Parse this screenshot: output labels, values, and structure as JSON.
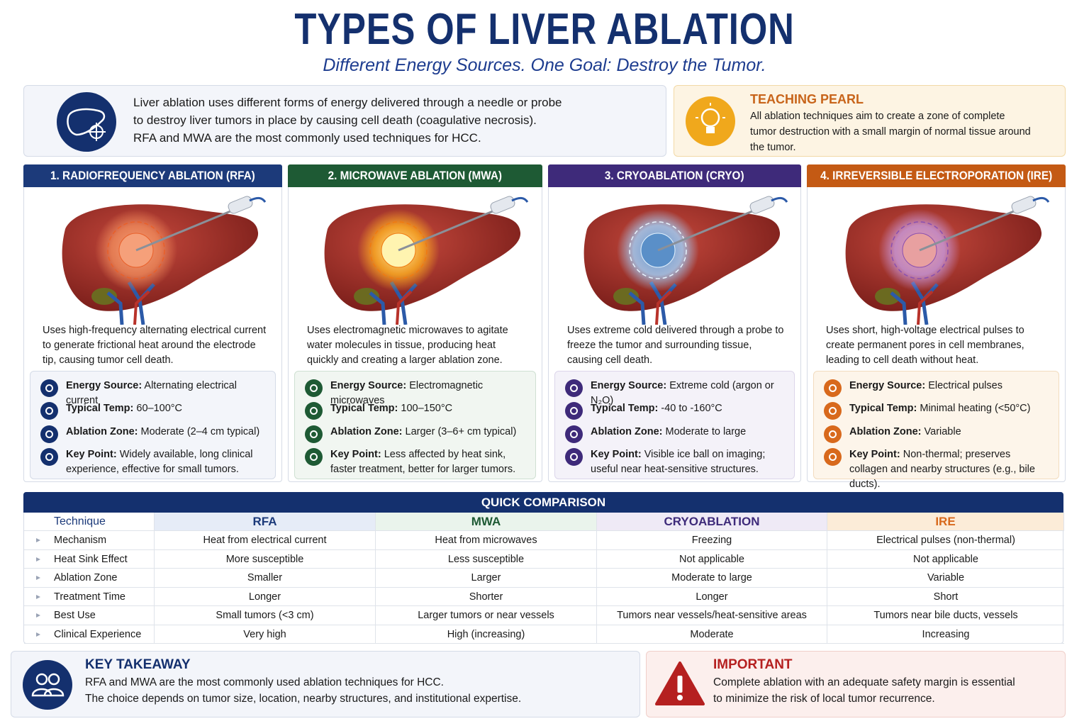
{
  "header": {
    "title": "TYPES OF LIVER ABLATION",
    "subtitle": "Different Energy Sources. One Goal: Destroy the Tumor."
  },
  "intro": {
    "lines": [
      "Liver ablation uses different forms of energy delivered through a needle or probe",
      "to destroy liver tumors in place by causing cell death (coagulative necrosis).",
      "RFA and MWA are the most commonly used techniques for HCC."
    ]
  },
  "teaching_pearl": {
    "title": "TEACHING PEARL",
    "text": "All ablation techniques aim to create a zone of complete tumor destruction with a small margin of normal tissue around the tumor."
  },
  "techniques": [
    {
      "title": "1. RADIOFREQUENCY ABLATION (RFA)",
      "description": "Uses high-frequency alternating electrical current to generate frictional heat around the electrode tip, causing tumor cell death.",
      "facts": [
        {
          "label": "Energy Source:",
          "text": "Alternating electrical current"
        },
        {
          "label": "Typical Temp:",
          "text": "60–100°C"
        },
        {
          "label": "Ablation Zone:",
          "text": "Moderate (2–4 cm typical)"
        },
        {
          "label": "Key Point:",
          "text": "Widely available, long clinical experience, effective for small tumors."
        }
      ]
    },
    {
      "title": "2. MICROWAVE ABLATION (MWA)",
      "description": "Uses electromagnetic microwaves to agitate water molecules in tissue, producing heat quickly and creating a larger ablation zone.",
      "facts": [
        {
          "label": "Energy Source:",
          "text": "Electromagnetic microwaves"
        },
        {
          "label": "Typical Temp:",
          "text": "100–150°C"
        },
        {
          "label": "Ablation Zone:",
          "text": "Larger (3–6+ cm typical)"
        },
        {
          "label": "Key Point:",
          "text": "Less affected by heat sink, faster treatment, better for larger tumors."
        }
      ]
    },
    {
      "title": "3. CRYOABLATION (CRYO)",
      "description": "Uses extreme cold delivered through a probe to freeze the tumor and surrounding tissue, causing cell death.",
      "facts": [
        {
          "label": "Energy Source:",
          "text": "Extreme cold (argon or N₂O)"
        },
        {
          "label": "Typical Temp:",
          "text": "-40 to -160°C"
        },
        {
          "label": "Ablation Zone:",
          "text": "Moderate to large"
        },
        {
          "label": "Key Point:",
          "text": "Visible ice ball on imaging; useful near heat-sensitive structures."
        }
      ]
    },
    {
      "title": "4. IRREVERSIBLE ELECTROPORATION (IRE)",
      "description": "Uses short, high-voltage electrical pulses to create permanent pores in cell membranes, leading to cell death without heat.",
      "facts": [
        {
          "label": "Energy Source:",
          "text": "Electrical pulses"
        },
        {
          "label": "Typical Temp:",
          "text": "Minimal heating (<50°C)"
        },
        {
          "label": "Ablation Zone:",
          "text": "Variable"
        },
        {
          "label": "Key Point:",
          "text": "Non-thermal; preserves collagen and nearby structures (e.g., bile ducts)."
        }
      ]
    }
  ],
  "comparison": {
    "title": "QUICK COMPARISON",
    "columns": [
      "Technique",
      "RFA",
      "MWA",
      "CRYOABLATION",
      "IRE"
    ],
    "rows": [
      [
        "Mechanism",
        "Heat from electrical current",
        "Heat from microwaves",
        "Freezing",
        "Electrical pulses (non-thermal)"
      ],
      [
        "Heat Sink Effect",
        "More susceptible",
        "Less susceptible",
        "Not applicable",
        "Not applicable"
      ],
      [
        "Ablation Zone",
        "Smaller",
        "Larger",
        "Moderate to large",
        "Variable"
      ],
      [
        "Treatment Time",
        "Longer",
        "Shorter",
        "Longer",
        "Short"
      ],
      [
        "Best Use",
        "Small tumors (<3 cm)",
        "Larger tumors or near vessels",
        "Tumors near vessels/heat-sensitive areas",
        "Tumors near bile ducts, vessels"
      ],
      [
        "Clinical Experience",
        "Very high",
        "High (increasing)",
        "Moderate",
        "Increasing"
      ]
    ]
  },
  "key_takeaway": {
    "title": "KEY TAKEAWAY",
    "lines": [
      "RFA and MWA are the most commonly used ablation techniques for HCC.",
      "The choice depends on tumor size, location, nearby structures, and institutional expertise."
    ]
  },
  "important": {
    "title": "IMPORTANT",
    "lines": [
      "Complete ablation with an adequate safety margin is essential",
      "to minimize the risk of local tumor recurrence."
    ]
  }
}
